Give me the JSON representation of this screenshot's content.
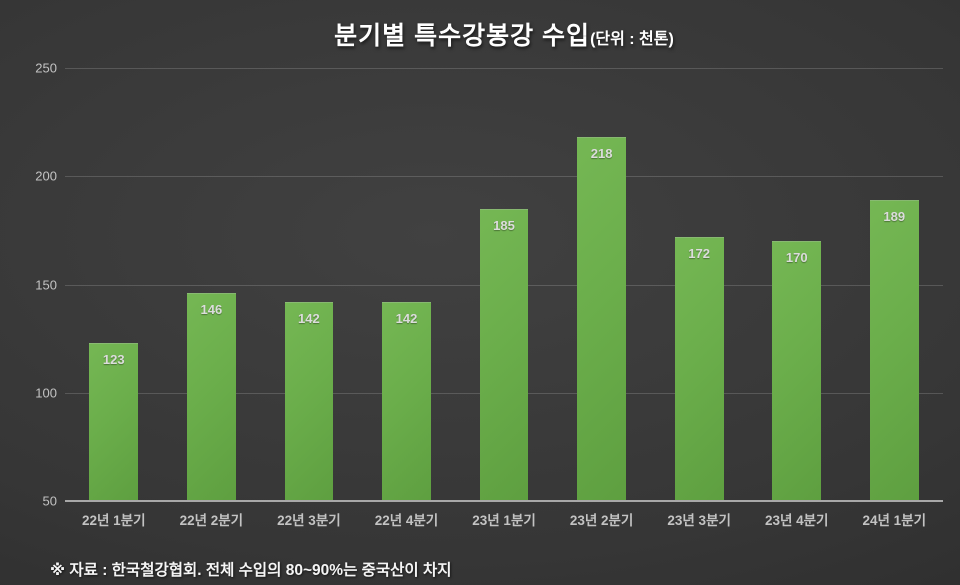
{
  "title": {
    "main": "분기별  특수강봉강 수입",
    "unit": "(단위 : 천톤)"
  },
  "footer": {
    "source_note": "※ 자료 : 한국철강협회. 전체 수입의 80~90%는 중국산이 차지"
  },
  "colors": {
    "bar_green": "#6bae4b",
    "bar_green_light": "#75b754",
    "bar_green_dark": "#5e9f40",
    "background_center": "#414141",
    "background_edge": "#262626",
    "gridline": "rgba(255,255,255,0.16)",
    "axis_line": "#a8a8a8",
    "tick_label": "#c3c3c3",
    "value_label": "#dcdcdc",
    "title_text": "#ffffff"
  },
  "chart_data": {
    "type": "bar",
    "title": "분기별 특수강봉강 수입",
    "subtitle_unit": "(단위 : 천톤)",
    "categories": [
      "22년 1분기",
      "22년 2분기",
      "22년 3분기",
      "22년 4분기",
      "23년 1분기",
      "23년 2분기",
      "23년 3분기",
      "23년 4분기",
      "24년 1분기"
    ],
    "values": [
      123,
      146,
      142,
      142,
      185,
      218,
      172,
      170,
      189
    ],
    "xlabel": "",
    "ylabel": "",
    "ylim": [
      50,
      250
    ],
    "yticks": [
      250,
      200,
      150,
      100,
      50
    ],
    "grid": true,
    "legend": false,
    "annotation": "※ 자료 : 한국철강협회. 전체 수입의 80~90%는 중국산이 차지"
  }
}
